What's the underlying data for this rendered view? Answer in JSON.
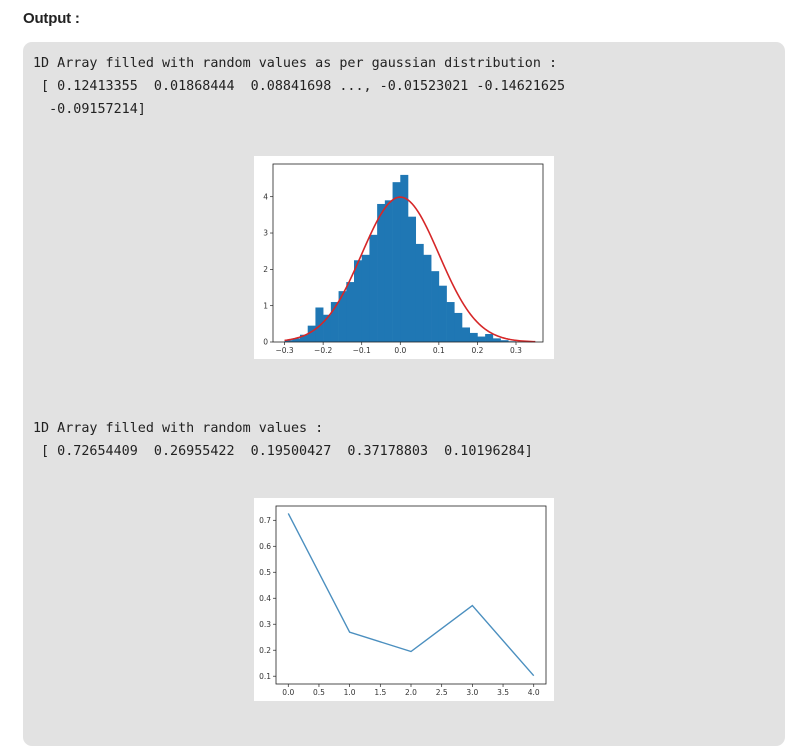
{
  "heading": "Output :",
  "output": {
    "gaussian_caption": "1D Array filled with random values as per gaussian distribution :",
    "gaussian_array_line1": " [ 0.12413355  0.01868444  0.08841698 ..., -0.01523021 -0.14621625",
    "gaussian_array_line2": "  -0.09157214]",
    "uniform_caption": "1D Array filled with random values :",
    "uniform_array_line1": " [ 0.72654409  0.26955422  0.19500427  0.37178803  0.10196284]"
  },
  "colors": {
    "bar": "#1f77b4",
    "curve": "#d62728",
    "line": "#4b8fbf",
    "panel_bg": "#e2e2e2"
  },
  "chart_data": [
    {
      "type": "bar",
      "subtype": "histogram",
      "title": "",
      "xlabel": "",
      "ylabel": "",
      "xlim": [
        -0.33,
        0.37
      ],
      "ylim": [
        0,
        4.9
      ],
      "x_ticks": [
        -0.3,
        -0.2,
        -0.1,
        0.0,
        0.1,
        0.2,
        0.3
      ],
      "x_tick_labels": [
        "−0.3",
        "−0.2",
        "−0.1",
        "0.0",
        "0.1",
        "0.2",
        "0.3"
      ],
      "y_ticks": [
        0,
        1,
        2,
        3,
        4
      ],
      "y_tick_labels": [
        "0",
        "1",
        "2",
        "3",
        "4"
      ],
      "bin_start": -0.3,
      "bin_width": 0.02,
      "bin_heights": [
        0.05,
        0.1,
        0.2,
        0.45,
        0.95,
        0.75,
        1.1,
        1.4,
        1.65,
        2.25,
        2.4,
        2.95,
        3.8,
        3.9,
        4.4,
        4.6,
        3.45,
        2.7,
        2.4,
        1.95,
        1.55,
        1.1,
        0.8,
        0.4,
        0.25,
        0.15,
        0.22,
        0.1,
        0.05,
        0.02
      ],
      "curve": {
        "type": "normal_pdf",
        "mean": 0.0,
        "std": 0.1
      },
      "grid": false
    },
    {
      "type": "line",
      "title": "",
      "xlabel": "",
      "ylabel": "",
      "x": [
        0,
        1,
        2,
        3,
        4
      ],
      "y": [
        0.72654409,
        0.26955422,
        0.19500427,
        0.37178803,
        0.10196284
      ],
      "xlim": [
        -0.2,
        4.2
      ],
      "ylim": [
        0.07,
        0.755
      ],
      "x_ticks": [
        0.0,
        0.5,
        1.0,
        1.5,
        2.0,
        2.5,
        3.0,
        3.5,
        4.0
      ],
      "x_tick_labels": [
        "0.0",
        "0.5",
        "1.0",
        "1.5",
        "2.0",
        "2.5",
        "3.0",
        "3.5",
        "4.0"
      ],
      "y_ticks": [
        0.1,
        0.2,
        0.3,
        0.4,
        0.5,
        0.6,
        0.7
      ],
      "y_tick_labels": [
        "0.1",
        "0.2",
        "0.3",
        "0.4",
        "0.5",
        "0.6",
        "0.7"
      ],
      "grid": false
    }
  ]
}
